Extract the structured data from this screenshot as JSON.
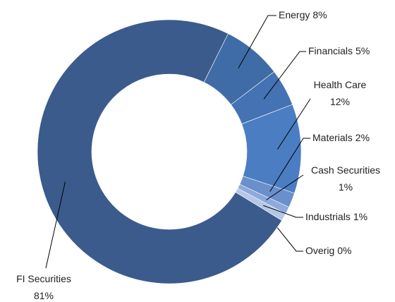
{
  "chart_data": {
    "type": "donut",
    "categories": [
      "Energy",
      "Financials",
      "Health Care",
      "Materials",
      "Cash Securities",
      "Industrials",
      "Overig",
      "FI Securities"
    ],
    "values": [
      8,
      5,
      12,
      2,
      1,
      1,
      0,
      81
    ],
    "value_labels": [
      "8%",
      "5%",
      "12%",
      "2%",
      "1%",
      "1%",
      "0%",
      "81%"
    ],
    "colors": [
      "#3f6ca6",
      "#4472b2",
      "#4b7dc2",
      "#6b8fca",
      "#8eaadb",
      "#b4c7e7",
      "#cbd8ee",
      "#3b5b8c"
    ]
  }
}
